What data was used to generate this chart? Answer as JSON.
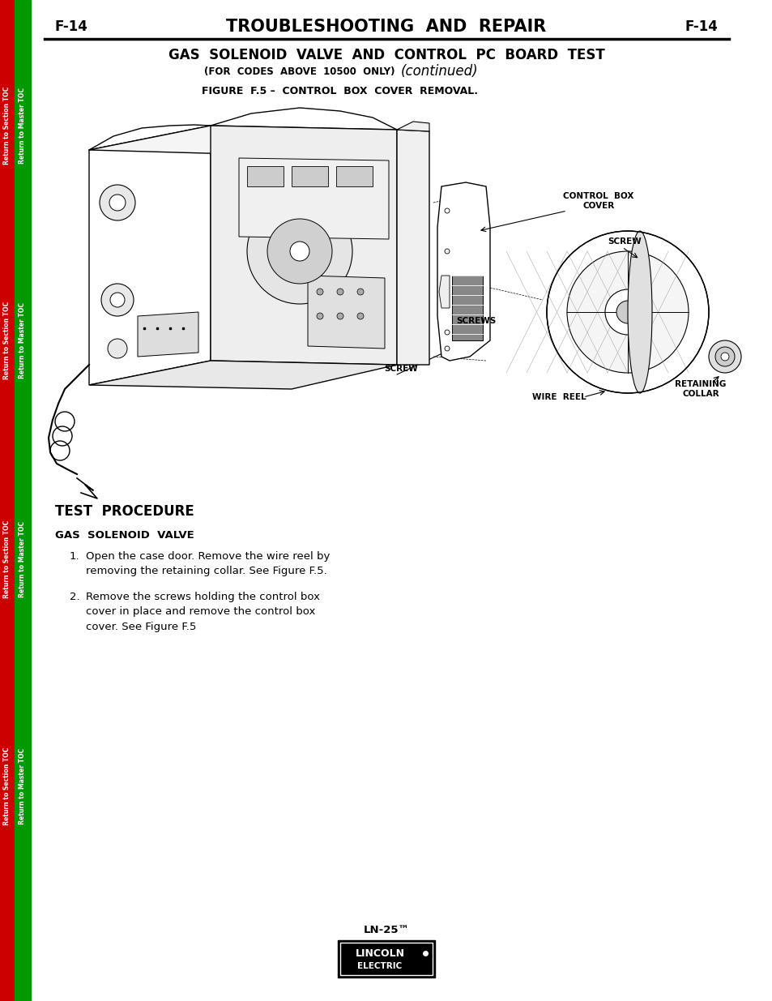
{
  "page_label_left": "F-14",
  "page_label_right": "F-14",
  "header_title": "TROUBLESHOOTING  AND  REPAIR",
  "section_title": "GAS  SOLENOID  VALVE  AND  CONTROL  PC  BOARD  TEST",
  "subtitle_codes": "(FOR  CODES  ABOVE  10500  ONLY)",
  "subtitle_continued": "(continued)",
  "figure_caption": "FIGURE  F.5 –  CONTROL  BOX  COVER  REMOVAL.",
  "test_procedure_heading": "TEST  PROCEDURE",
  "gas_solenoid_heading": "GAS  SOLENOID  VALVE",
  "step1_num": "1.",
  "step1_text": "Open the case door. Remove the wire reel by\nremoving the retaining collar. See Figure F.5.",
  "step2_num": "2.",
  "step2_text": "Remove the screws holding the control box\ncover in place and remove the control box\ncover. See Figure F.5",
  "label_control_box": "CONTROL  BOX\nCOVER",
  "label_screw_top": "SCREW",
  "label_screws": "SCREWS",
  "label_screw_bottom": "SCREW",
  "label_wire_reel": "WIRE  REEL",
  "label_retaining_collar": "RETAINING\nCOLLAR",
  "footer_model": "LN-25™",
  "sidebar_left_color": "#cc0000",
  "sidebar_right_color": "#009900",
  "sidebar_text_left": "Return to Section TOC",
  "sidebar_text_right": "Return to Master TOC",
  "bg_color": "#ffffff",
  "text_color": "#000000"
}
